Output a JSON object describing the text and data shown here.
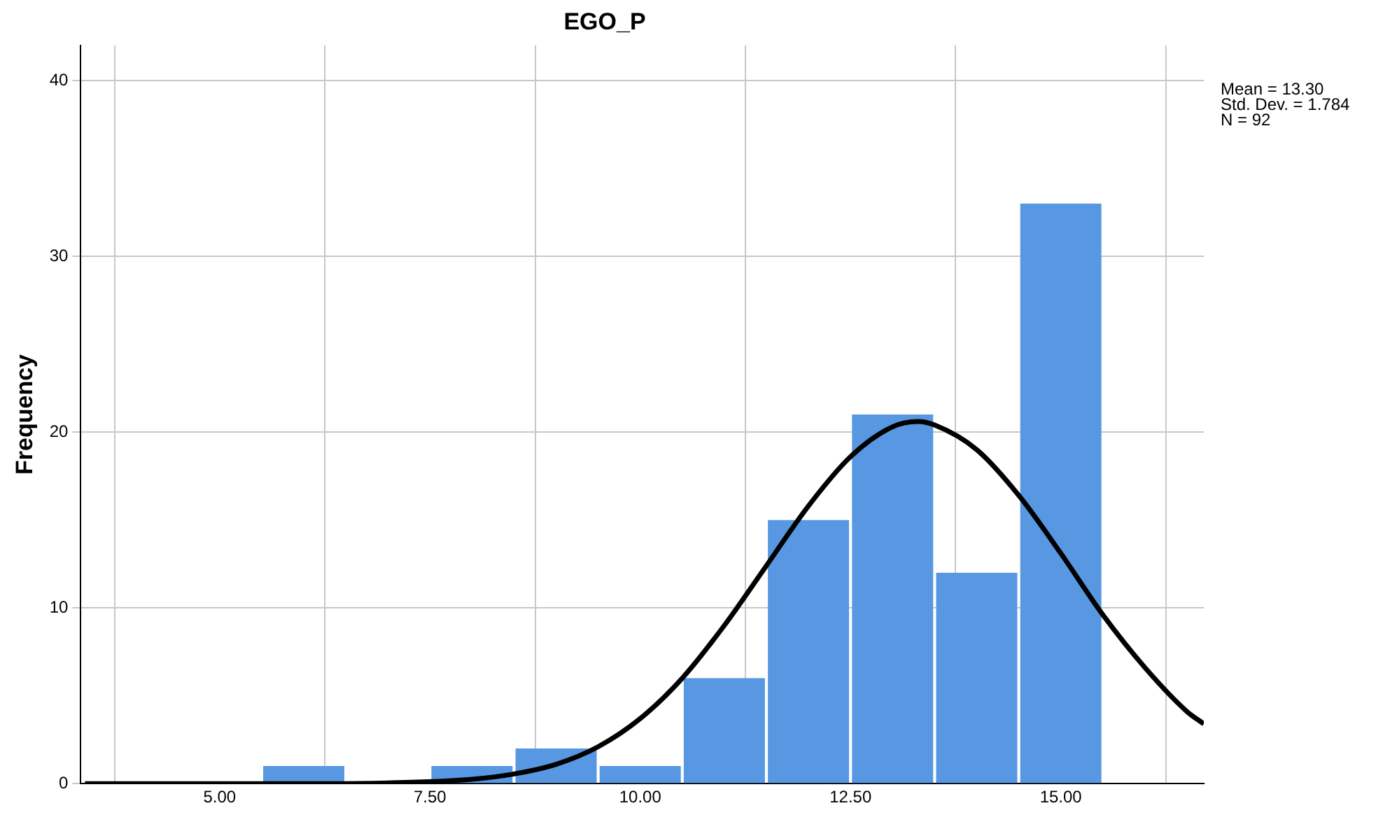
{
  "chart_data": {
    "type": "histogram",
    "title": "EGO_P",
    "ylabel": "Frequency",
    "series": [
      {
        "color": "#5898e3",
        "bins": [
          5.5,
          6.5,
          7.5,
          8.5,
          9.5,
          10.5,
          11.5,
          12.5,
          13.5,
          14.5,
          15.5
        ],
        "values": [
          1,
          0,
          1,
          2,
          1,
          6,
          15,
          21,
          12,
          33
        ]
      },
      {
        "type": "line",
        "color": "#000000",
        "x": [
          3.4,
          6,
          7,
          8,
          8.5,
          9,
          9.5,
          10,
          10.5,
          11,
          11.5,
          12,
          12.5,
          13,
          13.3,
          13.5,
          14,
          14.5,
          15,
          15.5,
          16,
          16.5,
          16.7
        ],
        "values": [
          0,
          0,
          0.04,
          0.25,
          0.55,
          1.1,
          2.1,
          3.7,
          6,
          9,
          12.4,
          15.8,
          18.6,
          20.3,
          20.6,
          20.4,
          19,
          16.4,
          13.1,
          9.6,
          6.6,
          4.1,
          3.4
        ]
      }
    ],
    "xlim": [
      3.35,
      16.7
    ],
    "ylim": [
      0,
      42
    ],
    "xticks": [
      {
        "value": 5,
        "label": "5.00"
      },
      {
        "value": 7.5,
        "label": "7.50"
      },
      {
        "value": 10,
        "label": "10.00"
      },
      {
        "value": 12.5,
        "label": "12.50"
      },
      {
        "value": 15,
        "label": "15.00"
      }
    ],
    "yticks": [
      0,
      10,
      20,
      30,
      40
    ],
    "grid": true,
    "marker": "none",
    "annotations": [
      "Mean = 13.30",
      "Std. Dev. = 1.784",
      "N = 92"
    ]
  }
}
